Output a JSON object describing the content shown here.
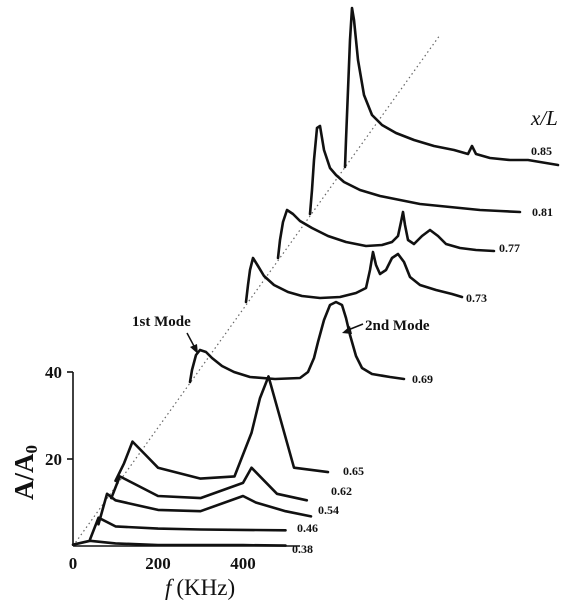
{
  "chart_data": {
    "type": "line",
    "style": "waterfall",
    "xlabel_var": "f",
    "xlabel_unit": "(KHz)",
    "ylabel_main": "A/A",
    "ylabel_sub": "0",
    "series_header": "x/L",
    "xlim": [
      0,
      550
    ],
    "ylim": [
      0,
      45
    ],
    "x_ticks": [
      "0",
      "200",
      "400"
    ],
    "y_ticks": [
      "20",
      "40"
    ],
    "grid": false,
    "annotations": [
      {
        "text": "1st Mode"
      },
      {
        "text": "2nd Mode"
      }
    ],
    "series": [
      {
        "name": "0.38",
        "x": [
          0,
          40,
          100,
          200,
          300,
          400,
          500
        ],
        "y": [
          0.3,
          1.2,
          0.6,
          0.2,
          0.2,
          0.2,
          0.1
        ]
      },
      {
        "name": "0.46",
        "x": [
          40,
          60,
          100,
          200,
          300,
          400,
          500
        ],
        "y": [
          1.5,
          6.5,
          4.5,
          4.0,
          3.8,
          3.7,
          3.6
        ]
      },
      {
        "name": "0.54",
        "x": [
          60,
          80,
          100,
          200,
          300,
          400,
          430,
          500,
          560
        ],
        "y": [
          5.0,
          12.0,
          10.5,
          8.3,
          8.0,
          11.5,
          10.0,
          8.0,
          6.8
        ]
      },
      {
        "name": "0.62",
        "x": [
          90,
          110,
          140,
          200,
          300,
          400,
          420,
          450,
          480,
          550
        ],
        "y": [
          11.0,
          16.0,
          14.5,
          11.5,
          11.0,
          14.5,
          18.0,
          15.0,
          12.0,
          10.5
        ]
      },
      {
        "name": "0.65",
        "x": [
          100,
          120,
          140,
          170,
          200,
          300,
          380,
          420,
          440,
          460,
          480,
          520,
          600
        ],
        "y": [
          15.0,
          19.0,
          24.0,
          21.0,
          18.0,
          15.5,
          16.0,
          26.0,
          34.0,
          39.0,
          32.0,
          18.0,
          17.0
        ]
      }
    ],
    "series_offset_only": [
      "0.69",
      "0.73",
      "0.77",
      "0.81",
      "0.85"
    ]
  }
}
